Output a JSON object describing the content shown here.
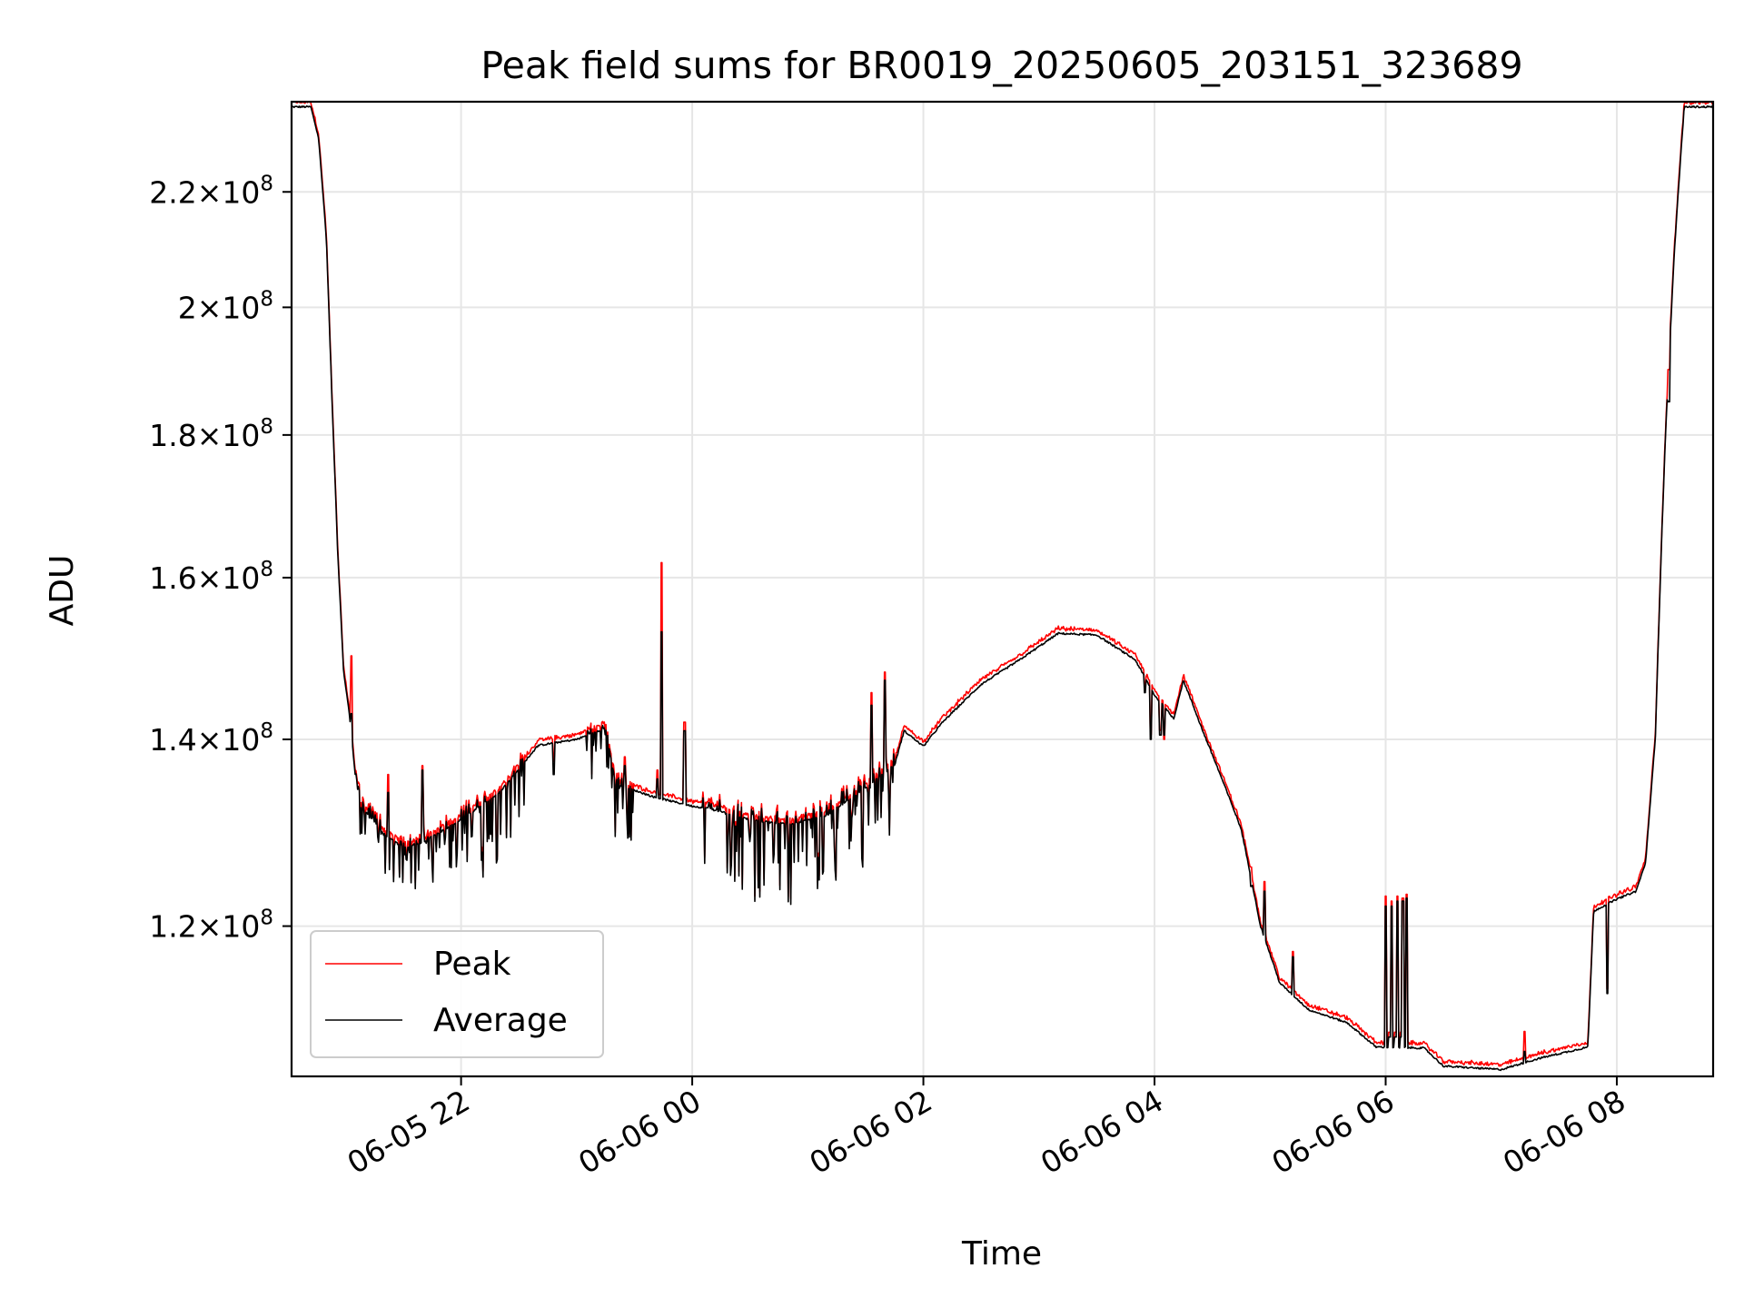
{
  "chart_data": {
    "type": "line",
    "title": "Peak field sums for BR0019_20250605_203151_323689",
    "xlabel": "Time",
    "ylabel": "ADU",
    "yscale": "log",
    "xlim": [
      "2025-06-05 20:32",
      "2025-06-06 08:50"
    ],
    "ylim": [
      106000000,
      237000000
    ],
    "grid": true,
    "legend_position": "lower-left",
    "x_ticks": [
      {
        "t": "2025-06-05 22:00",
        "label": "06-05 22"
      },
      {
        "t": "2025-06-06 00:00",
        "label": "06-06 00"
      },
      {
        "t": "2025-06-06 02:00",
        "label": "06-06 02"
      },
      {
        "t": "2025-06-06 04:00",
        "label": "06-06 04"
      },
      {
        "t": "2025-06-06 06:00",
        "label": "06-06 06"
      },
      {
        "t": "2025-06-06 08:00",
        "label": "06-06 08"
      }
    ],
    "y_ticks": [
      {
        "value": 120000000,
        "mantissa": "1.2",
        "exp": "8"
      },
      {
        "value": 140000000,
        "mantissa": "1.4",
        "exp": "8"
      },
      {
        "value": 160000000,
        "mantissa": "1.6",
        "exp": "8"
      },
      {
        "value": 180000000,
        "mantissa": "1.8",
        "exp": "8"
      },
      {
        "value": 200000000,
        "mantissa": "2",
        "exp": "8"
      },
      {
        "value": 220000000,
        "mantissa": "2.2",
        "exp": "8"
      }
    ],
    "tick_format": {
      "times": "×",
      "base": "10"
    },
    "series": [
      {
        "name": "Peak",
        "color": "#ff0000"
      },
      {
        "name": "Average",
        "color": "#000000"
      }
    ],
    "base_curve": [
      [
        "2025-06-05 20:32",
        236000000
      ],
      [
        "2025-06-05 20:42",
        236000000
      ],
      [
        "2025-06-05 20:46",
        230000000
      ],
      [
        "2025-06-05 20:50",
        212000000
      ],
      [
        "2025-06-05 20:53",
        185000000
      ],
      [
        "2025-06-05 20:56",
        163000000
      ],
      [
        "2025-06-05 20:59",
        148000000
      ],
      [
        "2025-06-05 21:02",
        143000000
      ],
      [
        "2025-06-05 21:05",
        136000000
      ],
      [
        "2025-06-05 21:10",
        132000000
      ],
      [
        "2025-06-05 21:20",
        129500000
      ],
      [
        "2025-06-05 21:30",
        128000000
      ],
      [
        "2025-06-05 21:40",
        128600000
      ],
      [
        "2025-06-05 22:00",
        131000000
      ],
      [
        "2025-06-05 22:20",
        134000000
      ],
      [
        "2025-06-05 22:40",
        139300000
      ],
      [
        "2025-06-05 23:00",
        140000000
      ],
      [
        "2025-06-05 23:15",
        141300000
      ],
      [
        "2025-06-05 23:20",
        135000000
      ],
      [
        "2025-06-05 23:40",
        133500000
      ],
      [
        "2025-06-06 00:00",
        132500000
      ],
      [
        "2025-06-06 00:10",
        132200000
      ],
      [
        "2025-06-06 00:30",
        131000000
      ],
      [
        "2025-06-06 00:50",
        130500000
      ],
      [
        "2025-06-06 01:10",
        131500000
      ],
      [
        "2025-06-06 01:30",
        134500000
      ],
      [
        "2025-06-06 01:45",
        137000000
      ],
      [
        "2025-06-06 01:50",
        141000000
      ],
      [
        "2025-06-06 02:00",
        139200000
      ],
      [
        "2025-06-06 02:10",
        142000000
      ],
      [
        "2025-06-06 02:30",
        146500000
      ],
      [
        "2025-06-06 02:50",
        149500000
      ],
      [
        "2025-06-06 03:10",
        152800000
      ],
      [
        "2025-06-06 03:30",
        152600000
      ],
      [
        "2025-06-06 03:50",
        149500000
      ],
      [
        "2025-06-06 04:00",
        145200000
      ],
      [
        "2025-06-06 04:10",
        142400000
      ],
      [
        "2025-06-06 04:15",
        147000000
      ],
      [
        "2025-06-06 04:25",
        141000000
      ],
      [
        "2025-06-06 04:35",
        135500000
      ],
      [
        "2025-06-06 04:45",
        130000000
      ],
      [
        "2025-06-06 04:55",
        120000000
      ],
      [
        "2025-06-06 05:05",
        114500000
      ],
      [
        "2025-06-06 05:20",
        112000000
      ],
      [
        "2025-06-06 05:40",
        110800000
      ],
      [
        "2025-06-06 05:55",
        108600000
      ],
      [
        "2025-06-06 06:00",
        108600000
      ],
      [
        "2025-06-06 06:20",
        108500000
      ],
      [
        "2025-06-06 06:30",
        106900000
      ],
      [
        "2025-06-06 07:00",
        106600000
      ],
      [
        "2025-06-06 07:20",
        107600000
      ],
      [
        "2025-06-06 07:45",
        108600000
      ],
      [
        "2025-06-06 07:48",
        121500000
      ],
      [
        "2025-06-06 08:00",
        122700000
      ],
      [
        "2025-06-06 08:10",
        123500000
      ],
      [
        "2025-06-06 08:15",
        126500000
      ],
      [
        "2025-06-06 08:20",
        140000000
      ],
      [
        "2025-06-06 08:25",
        178000000
      ],
      [
        "2025-06-06 08:30",
        210000000
      ],
      [
        "2025-06-06 08:35",
        236000000
      ],
      [
        "2025-06-06 08:50",
        236000000
      ]
    ],
    "noise_windows": [
      {
        "from": "2025-06-05 21:05",
        "to": "2025-06-05 22:10",
        "down": 5000000,
        "up": 1200000
      },
      {
        "from": "2025-06-05 22:10",
        "to": "2025-06-05 22:35",
        "down": 8000000,
        "up": 1000000
      },
      {
        "from": "2025-06-05 23:05",
        "to": "2025-06-05 23:30",
        "down": 6000000,
        "up": 1000000
      },
      {
        "from": "2025-06-06 00:05",
        "to": "2025-06-06 01:45",
        "down": 8500000,
        "up": 1500000
      }
    ],
    "spikes": [
      {
        "t": "2025-06-05 21:03",
        "peak": 150000000,
        "avg": 143000000
      },
      {
        "t": "2025-06-05 21:22",
        "peak": 136000000,
        "avg": 134000000
      },
      {
        "t": "2025-06-05 21:40",
        "peak": 137000000,
        "avg": 136500000
      },
      {
        "t": "2025-06-05 22:48",
        "peak": 137500000,
        "avg": 136000000
      },
      {
        "t": "2025-06-05 23:25",
        "peak": 138000000,
        "avg": 137000000
      },
      {
        "t": "2025-06-05 23:42",
        "peak": 136500000,
        "avg": 135500000
      },
      {
        "t": "2025-06-05 23:44",
        "peak": 162000000,
        "avg": 153000000
      },
      {
        "t": "2025-06-05 23:56",
        "peak": 142000000,
        "avg": 141000000
      },
      {
        "t": "2025-06-06 01:33",
        "peak": 145500000,
        "avg": 144000000
      },
      {
        "t": "2025-06-06 01:40",
        "peak": 148000000,
        "avg": 147000000
      },
      {
        "t": "2025-06-06 03:55",
        "peak": 146000000,
        "avg": 145500000
      },
      {
        "t": "2025-06-06 04:05",
        "peak": 140000000,
        "avg": 140500000
      },
      {
        "t": "2025-06-06 04:50",
        "peak": 126000000,
        "avg": 124000000
      },
      {
        "t": "2025-06-06 04:57",
        "peak": 124500000,
        "avg": 123500000
      },
      {
        "t": "2025-06-06 05:12",
        "peak": 117500000,
        "avg": 117000000
      },
      {
        "t": "2025-06-06 06:00",
        "peak": 123000000,
        "avg": 122000000
      },
      {
        "t": "2025-06-06 06:03",
        "peak": 122500000,
        "avg": 122000000
      },
      {
        "t": "2025-06-06 06:06",
        "peak": 123000000,
        "avg": 122500000
      },
      {
        "t": "2025-06-06 06:09",
        "peak": 122800000,
        "avg": 122500000
      },
      {
        "t": "2025-06-06 06:11",
        "peak": 123200000,
        "avg": 122800000
      },
      {
        "t": "2025-06-06 07:12",
        "peak": 110000000,
        "avg": 108200000
      },
      {
        "t": "2025-06-06 08:27",
        "peak": 190000000,
        "avg": 185000000
      }
    ],
    "dips": [
      {
        "t": "2025-06-06 03:58",
        "avg": 140000000
      },
      {
        "t": "2025-06-06 04:03",
        "avg": 140500000
      },
      {
        "t": "2025-06-06 06:02",
        "avg": 109500000
      },
      {
        "t": "2025-06-06 06:05",
        "avg": 109500000
      },
      {
        "t": "2025-06-06 06:08",
        "avg": 109500000
      },
      {
        "t": "2025-06-06 07:55",
        "avg": 113500000
      }
    ]
  }
}
